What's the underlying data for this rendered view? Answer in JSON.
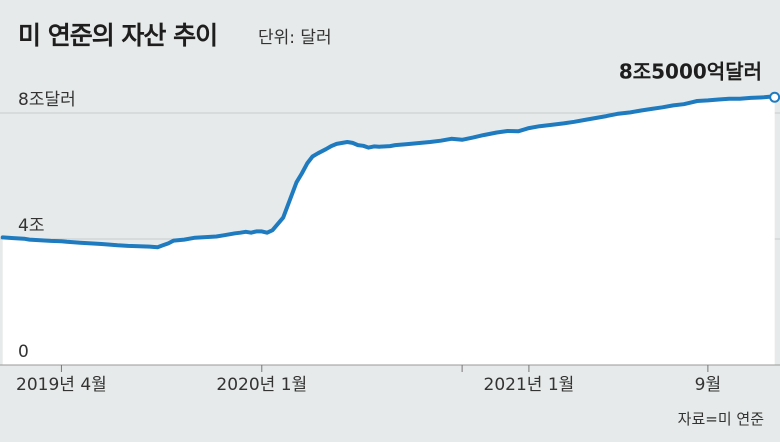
{
  "header": {
    "title": "미 연준의 자산 추이",
    "unit": "단위: 달러"
  },
  "source": "자료=미 연준",
  "colors": {
    "line": "#1f7bbf",
    "area": "#ffffff",
    "background": "#e7eaea"
  },
  "chart_data": {
    "type": "area",
    "title": "미 연준의 자산 추이",
    "unit": "단위: 달러",
    "xlim": [
      2019.02,
      2021.94
    ],
    "ylim": [
      0,
      8
    ],
    "yticks": [
      {
        "value": 8,
        "label": "8조달러"
      },
      {
        "value": 4,
        "label": "4조"
      },
      {
        "value": 0,
        "label": "0"
      }
    ],
    "xticks": [
      {
        "value": 2019.25,
        "label": "2019년 4월"
      },
      {
        "value": 2020.0,
        "label": "2020년 1월"
      },
      {
        "value": 2020.75,
        "label": ""
      },
      {
        "value": 2021.0,
        "label": "2021년 1월"
      },
      {
        "value": 2021.67,
        "label": "9월"
      }
    ],
    "annotation": {
      "x": 2021.92,
      "y": 8.5,
      "label": "8조5000억달러"
    },
    "series": [
      {
        "x": [
          2019.03,
          2019.07,
          2019.11,
          2019.13,
          2019.17,
          2019.21,
          2019.25,
          2019.27,
          2019.32,
          2019.36,
          2019.4,
          2019.46,
          2019.5,
          2019.54,
          2019.58,
          2019.61,
          2019.63,
          2019.65,
          2019.67,
          2019.71,
          2019.75,
          2019.79,
          2019.83,
          2019.86,
          2019.9,
          2019.92,
          2019.94,
          2019.96,
          2019.98,
          2020.0,
          2020.02,
          2020.04,
          2020.08,
          2020.13,
          2020.15,
          2020.17,
          2020.19,
          2020.21,
          2020.24,
          2020.26,
          2020.28,
          2020.32,
          2020.34,
          2020.36,
          2020.38,
          2020.4,
          2020.42,
          2020.44,
          2020.48,
          2020.5,
          2020.54,
          2020.58,
          2020.63,
          2020.67,
          2020.71,
          2020.75,
          2020.79,
          2020.83,
          2020.88,
          2020.92,
          2020.96,
          2021.0,
          2021.04,
          2021.08,
          2021.13,
          2021.17,
          2021.21,
          2021.25,
          2021.29,
          2021.33,
          2021.38,
          2021.42,
          2021.46,
          2021.5,
          2021.54,
          2021.58,
          2021.61,
          2021.63,
          2021.67,
          2021.71,
          2021.75,
          2021.79,
          2021.83,
          2021.88,
          2021.92
        ],
        "y": [
          4.05,
          4.03,
          4.01,
          3.98,
          3.96,
          3.94,
          3.93,
          3.91,
          3.88,
          3.86,
          3.84,
          3.8,
          3.78,
          3.77,
          3.76,
          3.74,
          3.8,
          3.86,
          3.95,
          3.98,
          4.04,
          4.06,
          4.08,
          4.12,
          4.18,
          4.2,
          4.23,
          4.2,
          4.24,
          4.24,
          4.2,
          4.28,
          4.68,
          5.8,
          6.08,
          6.4,
          6.62,
          6.72,
          6.85,
          6.95,
          7.02,
          7.08,
          7.05,
          6.98,
          6.96,
          6.9,
          6.94,
          6.93,
          6.95,
          6.98,
          7.01,
          7.04,
          7.08,
          7.12,
          7.18,
          7.15,
          7.22,
          7.3,
          7.38,
          7.43,
          7.42,
          7.52,
          7.58,
          7.62,
          7.67,
          7.72,
          7.78,
          7.84,
          7.9,
          7.97,
          8.02,
          8.08,
          8.13,
          8.18,
          8.24,
          8.28,
          8.34,
          8.38,
          8.4,
          8.43,
          8.45,
          8.45,
          8.48,
          8.5,
          8.53
        ]
      }
    ]
  }
}
